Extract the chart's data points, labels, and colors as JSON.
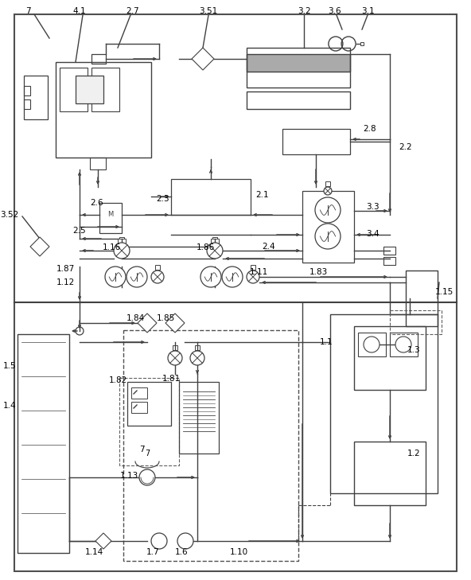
{
  "bg_color": "#ffffff",
  "lc": "#404040",
  "lc2": "#606060",
  "fig_w": 5.92,
  "fig_h": 7.29,
  "dpi": 100
}
